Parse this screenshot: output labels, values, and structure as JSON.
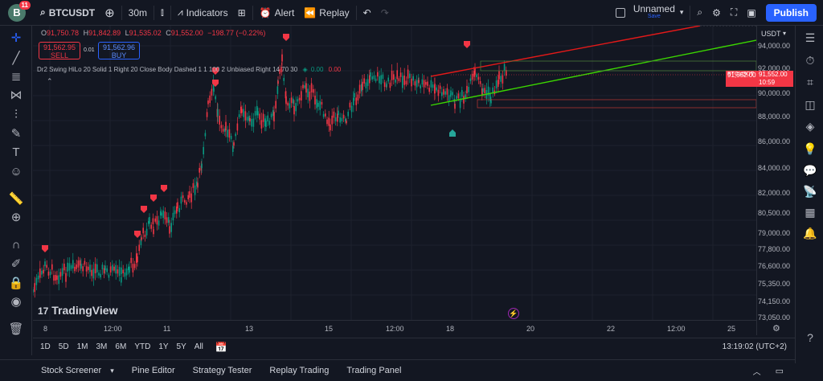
{
  "topbar": {
    "avatar_letter": "B",
    "avatar_badge": "11",
    "symbol": "BTCUSDT",
    "interval": "30m",
    "indicators_label": "Indicators",
    "alert_label": "Alert",
    "replay_label": "Replay",
    "layout_name": "Unnamed",
    "layout_status": "Save",
    "publish_label": "Publish"
  },
  "legend": {
    "o_label": "O",
    "o_value": "91,750.78",
    "h_label": "H",
    "h_value": "91,842.89",
    "l_label": "L",
    "l_value": "91,535.02",
    "c_label": "C",
    "c_value": "91,552.00",
    "change": "−198.77 (−0.22%)"
  },
  "trade": {
    "sell_price": "91,562.95",
    "sell_label": "SELL",
    "spread": "0.01",
    "buy_price": "91,562.96",
    "buy_label": "BUY"
  },
  "indicator": {
    "text": "Dr2 Swing HiLo 20 Solid 1 Right 20 Close Body Dashed 1 1 100 2 Unbiased Right 14 70 30",
    "v1": "0.00",
    "v2": "0.00"
  },
  "pricescale": {
    "currency": "USDT",
    "labels": [
      "94,000.00",
      "92,000.00",
      "90,000.00",
      "88,000.00",
      "86,000.00",
      "84,000.00",
      "82,000.00",
      "80,500.00",
      "79,000.00",
      "77,800.00",
      "76,600.00",
      "75,350.00",
      "74,150.00",
      "73,050.00"
    ]
  },
  "price_tag": {
    "symbol": "BTCUSDT",
    "price": "91,552.00",
    "countdown": "10:59"
  },
  "timescale": {
    "labels": [
      "8",
      "12:00",
      "11",
      "13",
      "15",
      "12:00",
      "18",
      "20",
      "22",
      "12:00",
      "25"
    ]
  },
  "ranges": [
    "1D",
    "5D",
    "1M",
    "3M",
    "6M",
    "YTD",
    "1Y",
    "5Y",
    "All"
  ],
  "clock": "13:19:02 (UTC+2)",
  "bottom_tabs": [
    "Stock Screener",
    "Pine Editor",
    "Strategy Tester",
    "Replay Trading",
    "Trading Panel"
  ],
  "watermark": "TradingView",
  "colors": {
    "up": "#089981",
    "down": "#f23645",
    "accent": "#2962ff",
    "background": "#131722"
  },
  "icons": {
    "left": [
      "crosshair-icon",
      "trend-line-icon",
      "fib-icon",
      "pattern-icon",
      "forecast-icon",
      "brush-icon",
      "text-icon",
      "emoji-icon",
      "ruler-icon",
      "zoom-icon",
      "magnet-icon",
      "lock-drawing-icon",
      "lock-icon",
      "eye-icon",
      "trash-icon"
    ],
    "right": [
      "watchlist-icon",
      "alerts-clock-icon",
      "hotlist-icon",
      "data-window-icon",
      "layers-icon",
      "ideas-icon",
      "chat-icon",
      "streams-icon",
      "calendar-icon",
      "notifications-icon",
      "help-icon"
    ]
  }
}
